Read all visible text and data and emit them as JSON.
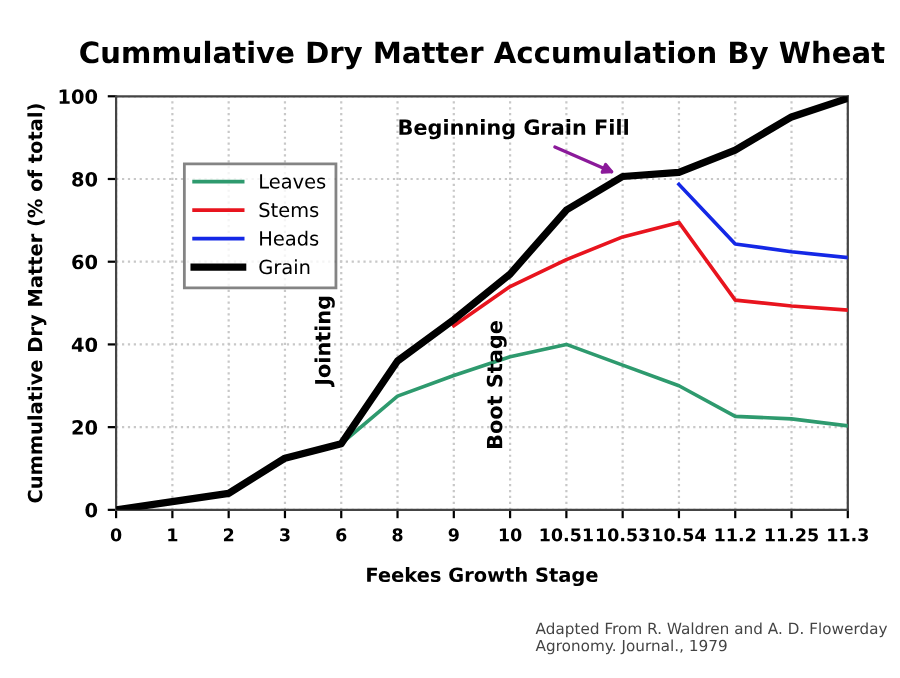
{
  "chart_data": {
    "type": "line",
    "title": "Cummulative Dry Matter Accumulation By Wheat",
    "xlabel": "Feekes Growth Stage",
    "ylabel": "Cummulative Dry Matter (% of total)",
    "categories": [
      "0",
      "1",
      "2",
      "3",
      "6",
      "8",
      "9",
      "10",
      "10.51",
      "10.53",
      "10.54",
      "11.2",
      "11.25",
      "11.3"
    ],
    "ylim": [
      0,
      100
    ],
    "yticks": [
      0,
      20,
      40,
      60,
      80,
      100
    ],
    "grid": true,
    "legend": "top left",
    "line_style": "solid",
    "marker": "none",
    "series": [
      {
        "name": "Leaves",
        "color": "#2e9a6e",
        "values": [
          null,
          null,
          null,
          null,
          16,
          27.5,
          32.5,
          37,
          40,
          35,
          30,
          22.6,
          22,
          20.3
        ]
      },
      {
        "name": "Stems",
        "color": "#e8141e",
        "values": [
          null,
          null,
          null,
          null,
          null,
          null,
          44.5,
          54,
          60.5,
          66,
          69.5,
          50.7,
          49.3,
          48.3
        ]
      },
      {
        "name": "Heads",
        "color": "#1428e6",
        "values": [
          null,
          null,
          null,
          null,
          null,
          null,
          null,
          null,
          null,
          null,
          78.7,
          64.3,
          62.4,
          61
        ]
      },
      {
        "name": "Grain",
        "color": "#000000",
        "values": [
          0,
          2,
          4,
          12.5,
          16,
          36,
          46,
          57,
          72.5,
          80.6,
          81.6,
          87,
          95,
          99.5
        ]
      }
    ],
    "annotations": [
      {
        "text": "Beginning Grain Fill",
        "x": "10.53",
        "y": 80.6
      },
      "Jointing",
      "Boot Stage",
      "Adapted From R. Waldren and A. D. Flowerday\nAgronomy. Journal., 1979"
    ]
  }
}
